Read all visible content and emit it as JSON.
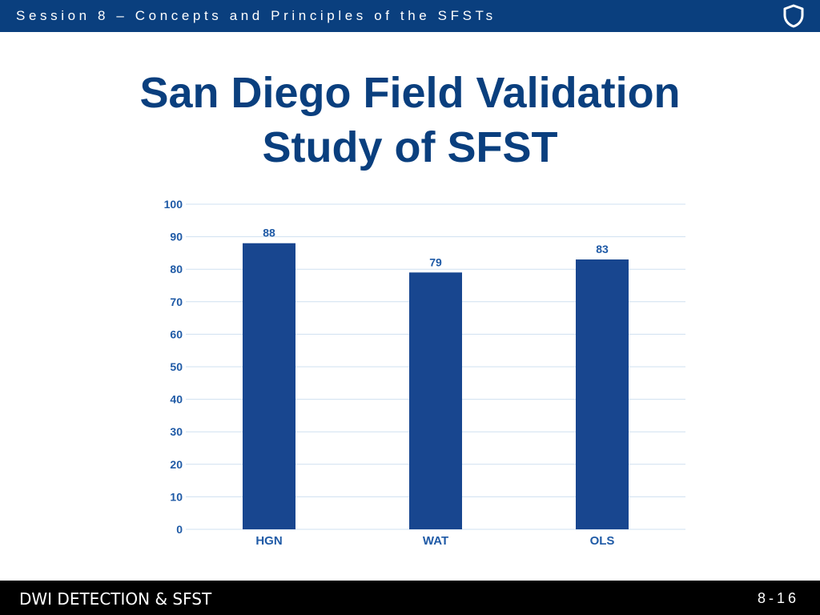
{
  "header": {
    "session_title": "Session 8 – Concepts and Principles of the SFSTs",
    "icon": "shield-icon"
  },
  "slide": {
    "title_line1": "San Diego Field Validation",
    "title_line2": "Study of SFST"
  },
  "chart_data": {
    "type": "bar",
    "categories": [
      "HGN",
      "WAT",
      "OLS"
    ],
    "values": [
      88,
      79,
      83
    ],
    "title": "",
    "xlabel": "",
    "ylabel": "",
    "ylim": [
      0,
      100
    ],
    "yticks": [
      0,
      10,
      20,
      30,
      40,
      50,
      60,
      70,
      80,
      90,
      100
    ],
    "grid": true,
    "data_labels": true,
    "bar_color": "#18468f",
    "label_color": "#1f5aa6",
    "grid_color": "#cfe0f0"
  },
  "footer": {
    "title": "DWI DETECTION & SFST",
    "page": "8-16"
  },
  "colors": {
    "header_bg": "#0a3f7e",
    "footer_bg": "#000000",
    "title_color": "#0a3f7e"
  }
}
